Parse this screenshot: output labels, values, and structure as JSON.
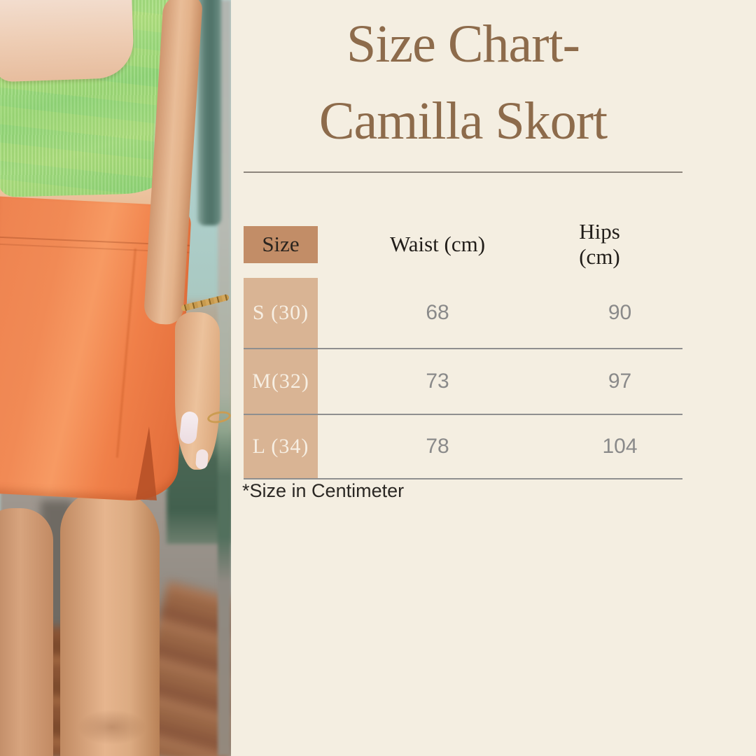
{
  "page": {
    "background": "#f4eee1"
  },
  "photo": {
    "alt": "Model wearing a green square-neck crop top and an orange skort",
    "palette": {
      "top_green": "#9ad97f",
      "skort_orange": "#f0824c",
      "backdrop_teal": "#b2d0cc"
    }
  },
  "title": {
    "line1": "Size Chart-",
    "line2": "Camilla Skort",
    "color": "#8d6b4b"
  },
  "size_chart": {
    "columns": {
      "size": "Size",
      "waist": "Waist (cm)",
      "hips": "Hips (cm)"
    },
    "rows": [
      {
        "size": "S (30)",
        "waist": "68",
        "hips": "90"
      },
      {
        "size": "M(32)",
        "waist": "73",
        "hips": "97"
      },
      {
        "size": "L (34)",
        "waist": "78",
        "hips": "104"
      }
    ],
    "colors": {
      "size_header_bg": "#c28d67",
      "size_column_bg": "#d9b494",
      "separator": "#8f8f8f",
      "value_text": "#8a8a8a"
    }
  },
  "footnote": {
    "text": "*Size in Centimeter"
  }
}
